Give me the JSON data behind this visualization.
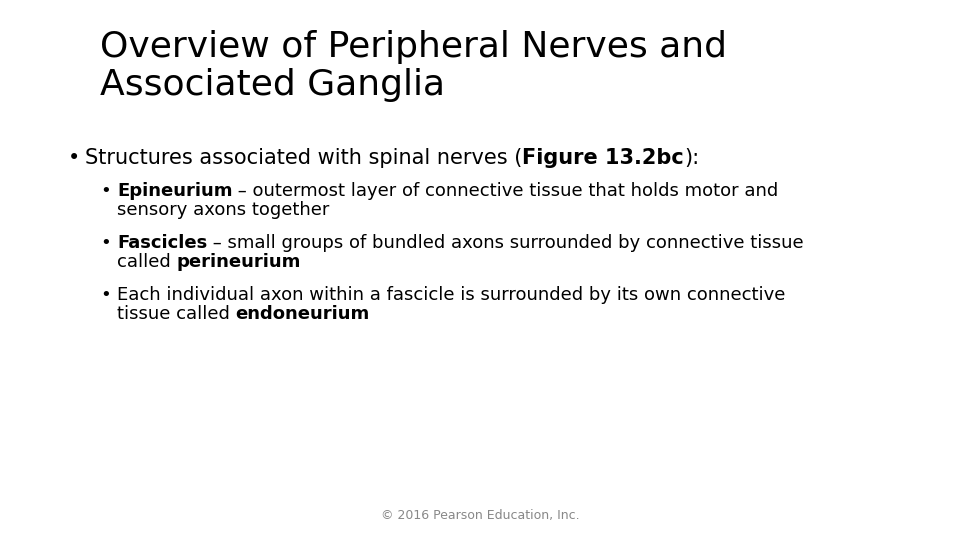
{
  "title_line1": "Overview of Peripheral Nerves and",
  "title_line2": "Associated Ganglia",
  "background_color": "#ffffff",
  "title_fontsize": 26,
  "title_color": "#000000",
  "footer": "© 2016 Pearson Education, Inc.",
  "footer_fontsize": 9,
  "footer_color": "#888888",
  "main_bullet_fontsize": 15,
  "sub_bullet_fontsize": 13
}
